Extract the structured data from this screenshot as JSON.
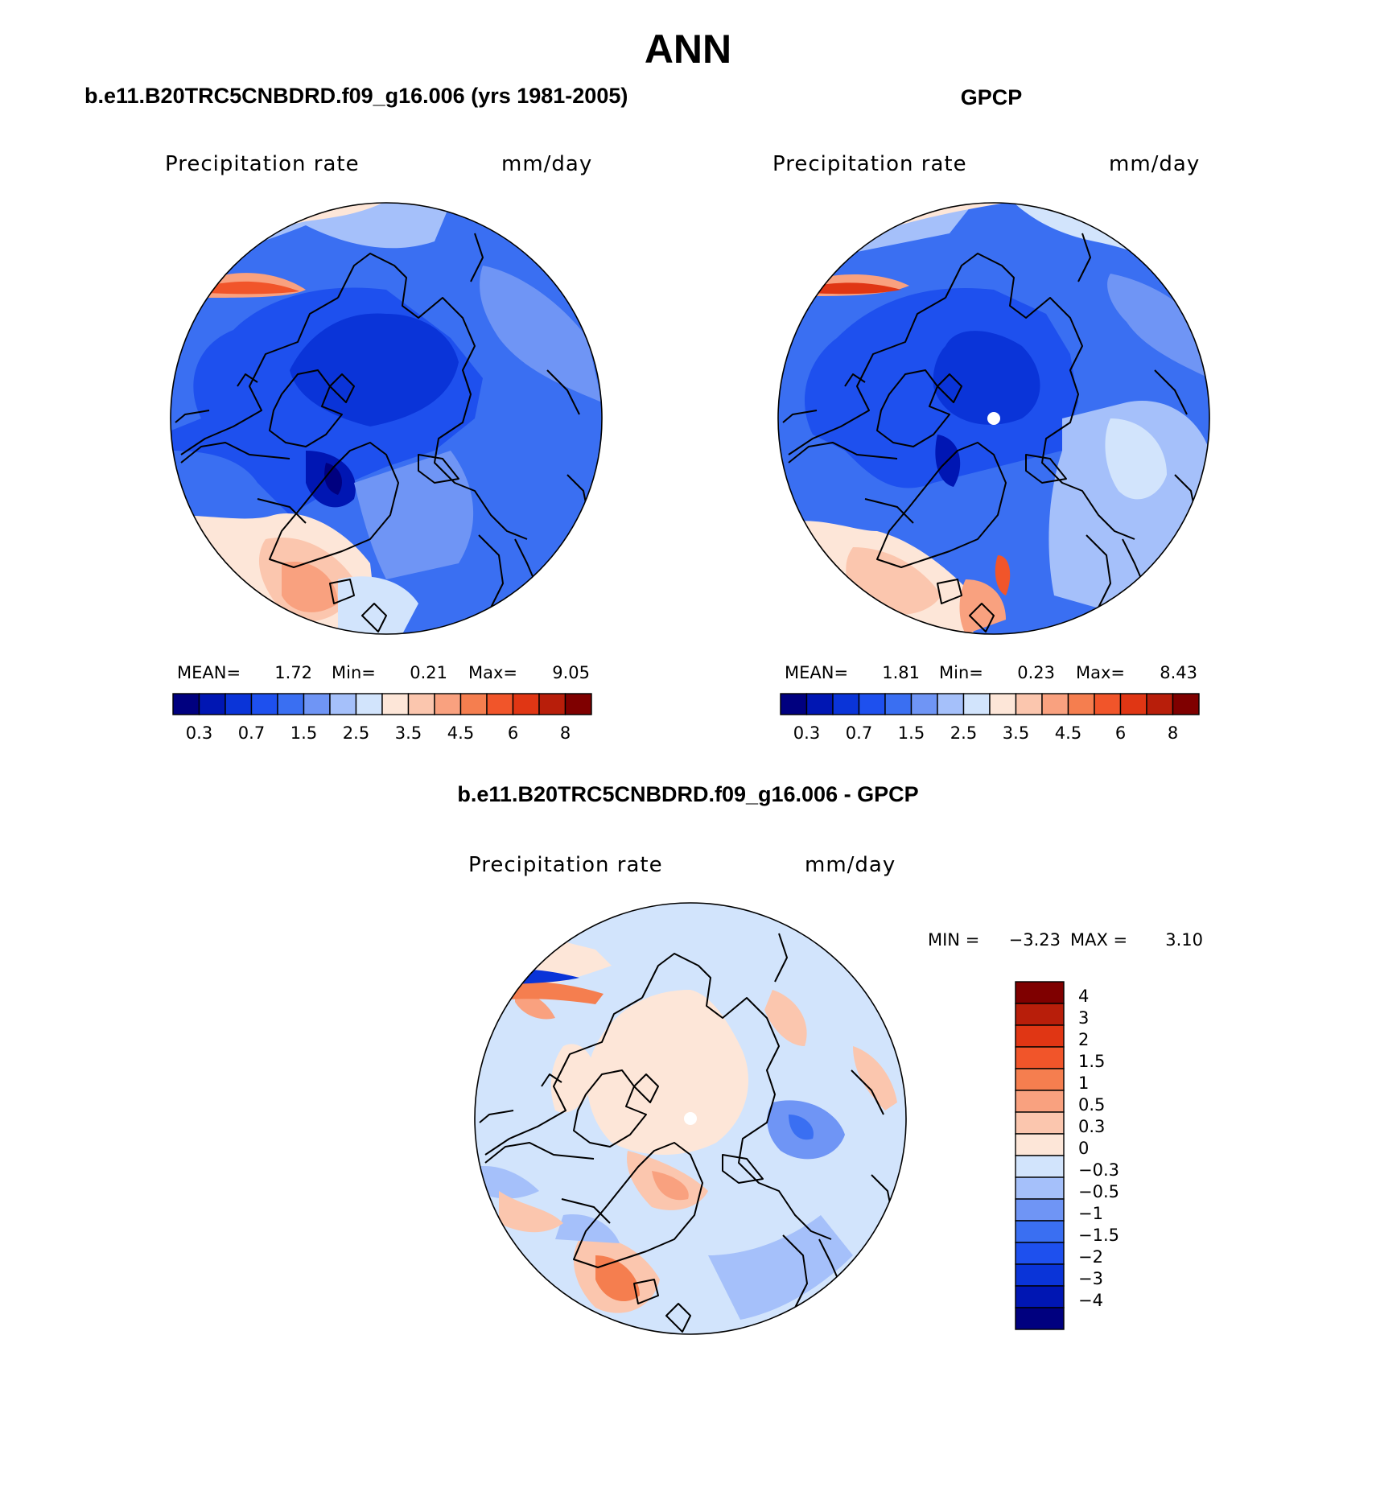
{
  "title": "ANN",
  "model_title": "b.e11.B20TRC5CNBDRD.f09_g16.006 (yrs 1981-2005)",
  "obs_title": "GPCP",
  "diff_title": "b.e11.B20TRC5CNBDRD.f09_g16.006 - GPCP",
  "panels": {
    "model": {
      "field": "Precipitation rate",
      "units": "mm/day",
      "stats": {
        "mean_label": "MEAN=",
        "mean": "1.72",
        "min_label": "Min=",
        "min": "0.21",
        "max_label": "Max=",
        "max": "9.05"
      }
    },
    "obs": {
      "field": "Precipitation rate",
      "units": "mm/day",
      "stats": {
        "mean_label": "MEAN=",
        "mean": "1.81",
        "min_label": "Min=",
        "min": "0.23",
        "max_label": "Max=",
        "max": "8.43"
      }
    },
    "diff": {
      "field": "Precipitation rate",
      "units": "mm/day",
      "stats": {
        "min_label": "MIN =",
        "min": "−3.23",
        "max_label": "MAX =",
        "max": "3.10"
      }
    }
  },
  "abs_colorbar": {
    "colors": [
      "#00007f",
      "#0016b3",
      "#0a34d8",
      "#1e50ee",
      "#3a6ff2",
      "#6f95f5",
      "#a5c0fa",
      "#d2e4fc",
      "#fde6d8",
      "#fbc6ae",
      "#f9a17f",
      "#f57e4f",
      "#f1552a",
      "#e03614",
      "#b81e0a",
      "#7f0000"
    ],
    "tick_labels": [
      "0.3",
      "0.7",
      "1.5",
      "2.5",
      "3.5",
      "4.5",
      "6",
      "8"
    ]
  },
  "diff_colorbar": {
    "colors_top_to_bottom": [
      "#7f0000",
      "#b81e0a",
      "#e03614",
      "#f1552a",
      "#f57e4f",
      "#f9a17f",
      "#fbc6ae",
      "#fde6d8",
      "#d2e4fc",
      "#a5c0fa",
      "#6f95f5",
      "#3a6ff2",
      "#1e50ee",
      "#0a34d8",
      "#0016b3",
      "#00007f"
    ],
    "tick_labels": [
      "4",
      "3",
      "2",
      "1.5",
      "1",
      "0.5",
      "0.3",
      "0",
      "−0.3",
      "−0.5",
      "−1",
      "−1.5",
      "−2",
      "−3",
      "−4"
    ]
  }
}
